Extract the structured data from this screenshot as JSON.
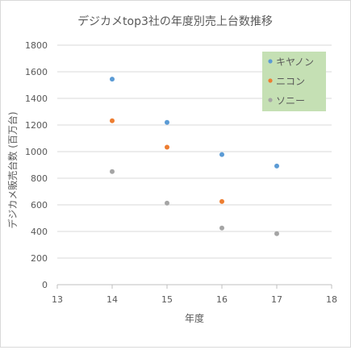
{
  "chart_data": {
    "type": "scatter",
    "title": "デジカメtop3社の年度別売上台数推移",
    "xlabel": "年度",
    "ylabel": "デジカメ販売台数 (百万台)",
    "xlim": [
      13,
      18
    ],
    "ylim": [
      0,
      1800
    ],
    "x_ticks": [
      13,
      14,
      15,
      16,
      17,
      18
    ],
    "y_ticks": [
      0,
      200,
      400,
      600,
      800,
      1000,
      1200,
      1400,
      1600,
      1800
    ],
    "grid": "horizontal",
    "legend_position": "top-right",
    "series": [
      {
        "name": "キヤノン",
        "color": "#5b9bd5",
        "points": [
          {
            "x": 14,
            "y": 1545
          },
          {
            "x": 15,
            "y": 1220
          },
          {
            "x": 16,
            "y": 978
          },
          {
            "x": 17,
            "y": 892
          }
        ]
      },
      {
        "name": "ニコン",
        "color": "#ed7d31",
        "points": [
          {
            "x": 14,
            "y": 1232
          },
          {
            "x": 15,
            "y": 1033
          },
          {
            "x": 16,
            "y": 625
          }
        ]
      },
      {
        "name": "ソニー",
        "color": "#a5a5a5",
        "points": [
          {
            "x": 14,
            "y": 850
          },
          {
            "x": 15,
            "y": 613
          },
          {
            "x": 16,
            "y": 426
          },
          {
            "x": 17,
            "y": 383
          }
        ]
      }
    ],
    "legend_background": "#c5e0b4",
    "grid_color": "#d9d9d9",
    "text_color": "#595959"
  }
}
